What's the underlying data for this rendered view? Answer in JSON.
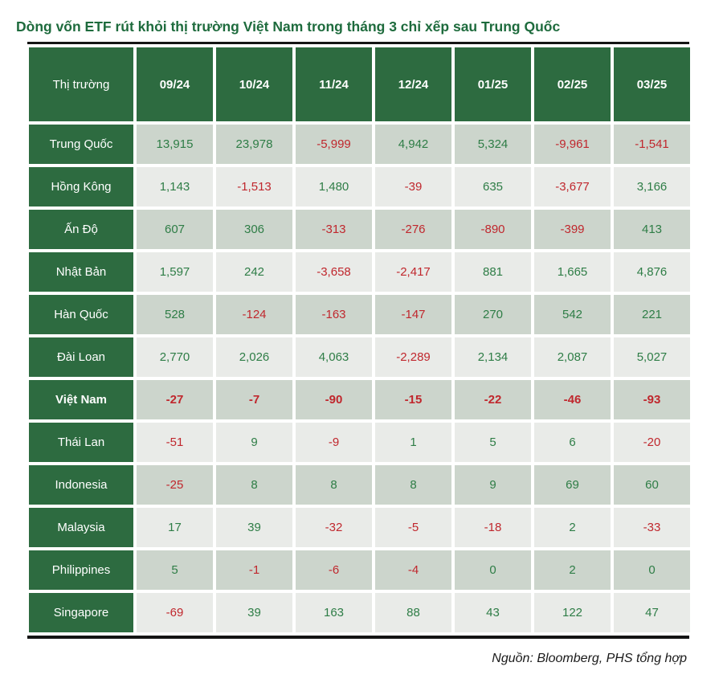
{
  "title": "Dòng vốn ETF rút khỏi thị trường Việt Nam trong tháng 3 chỉ xếp sau Trung Quốc",
  "source": "Nguồn: Bloomberg, PHS tổng hợp",
  "colors": {
    "title_green": "#1e6b3d",
    "header_cell_green": "#2d6b40",
    "row_dark_bg": "#ccd5cc",
    "row_light_bg": "#e9ebe8",
    "positive_value": "#2e7d46",
    "negative_value": "#c0272d",
    "rule_black": "#141414"
  },
  "chart_data": {
    "type": "table",
    "title": "Dòng vốn ETF rút khỏi thị trường Việt Nam trong tháng 3 chỉ xếp sau Trung Quốc",
    "columns": [
      "Thị trường",
      "09/24",
      "10/24",
      "11/24",
      "12/24",
      "01/25",
      "02/25",
      "03/25"
    ],
    "rows": [
      {
        "market": "Trung Quốc",
        "values": [
          "13,915",
          "23,978",
          "-5,999",
          "4,942",
          "5,324",
          "-9,961",
          "-1,541"
        ],
        "highlight": false
      },
      {
        "market": "Hồng Kông",
        "values": [
          "1,143",
          "-1,513",
          "1,480",
          "-39",
          "635",
          "-3,677",
          "3,166"
        ],
        "highlight": false
      },
      {
        "market": "Ấn Độ",
        "values": [
          "607",
          "306",
          "-313",
          "-276",
          "-890",
          "-399",
          "413"
        ],
        "highlight": false
      },
      {
        "market": "Nhật Bản",
        "values": [
          "1,597",
          "242",
          "-3,658",
          "-2,417",
          "881",
          "1,665",
          "4,876"
        ],
        "highlight": false
      },
      {
        "market": "Hàn Quốc",
        "values": [
          "528",
          "-124",
          "-163",
          "-147",
          "270",
          "542",
          "221"
        ],
        "highlight": false
      },
      {
        "market": "Đài Loan",
        "values": [
          "2,770",
          "2,026",
          "4,063",
          "-2,289",
          "2,134",
          "2,087",
          "5,027"
        ],
        "highlight": false
      },
      {
        "market": "Việt Nam",
        "values": [
          "-27",
          "-7",
          "-90",
          "-15",
          "-22",
          "-46",
          "-93"
        ],
        "highlight": true
      },
      {
        "market": "Thái Lan",
        "values": [
          "-51",
          "9",
          "-9",
          "1",
          "5",
          "6",
          "-20"
        ],
        "highlight": false
      },
      {
        "market": "Indonesia",
        "values": [
          "-25",
          "8",
          "8",
          "8",
          "9",
          "69",
          "60"
        ],
        "highlight": false
      },
      {
        "market": "Malaysia",
        "values": [
          "17",
          "39",
          "-32",
          "-5",
          "-18",
          "2",
          "-33"
        ],
        "highlight": false
      },
      {
        "market": "Philippines",
        "values": [
          "5",
          "-1",
          "-6",
          "-4",
          "0",
          "2",
          "0"
        ],
        "highlight": false
      },
      {
        "market": "Singapore",
        "values": [
          "-69",
          "39",
          "163",
          "88",
          "43",
          "122",
          "47"
        ],
        "highlight": false
      }
    ],
    "value_color_rule": "negative values red, zero and positive values green",
    "legend_position": "none",
    "grid": "white gaps between cells"
  }
}
